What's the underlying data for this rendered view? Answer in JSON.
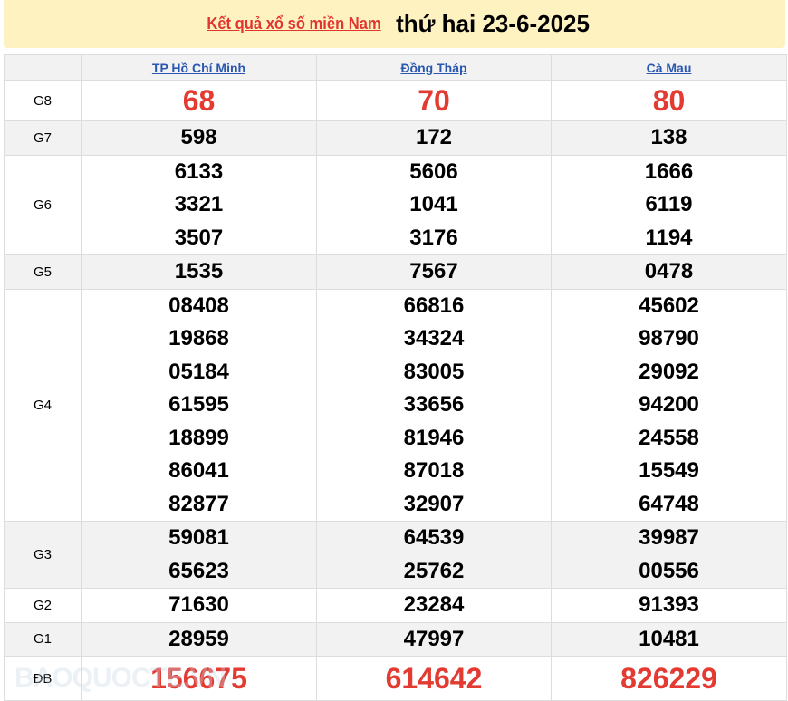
{
  "header": {
    "link": "Kết quả xổ số miền Nam",
    "date": "thứ hai 23-6-2025"
  },
  "columns": [
    "TP Hồ Chí Minh",
    "Đồng Tháp",
    "Cà Mau"
  ],
  "rows": [
    {
      "label": "G8",
      "values": [
        [
          "68"
        ],
        [
          "70"
        ],
        [
          "80"
        ]
      ]
    },
    {
      "label": "G7",
      "values": [
        [
          "598"
        ],
        [
          "172"
        ],
        [
          "138"
        ]
      ]
    },
    {
      "label": "G6",
      "values": [
        [
          "6133",
          "3321",
          "3507"
        ],
        [
          "5606",
          "1041",
          "3176"
        ],
        [
          "1666",
          "6119",
          "1194"
        ]
      ]
    },
    {
      "label": "G5",
      "values": [
        [
          "1535"
        ],
        [
          "7567"
        ],
        [
          "0478"
        ]
      ]
    },
    {
      "label": "G4",
      "values": [
        [
          "08408",
          "19868",
          "05184",
          "61595",
          "18899",
          "86041",
          "82877"
        ],
        [
          "66816",
          "34324",
          "83005",
          "33656",
          "81946",
          "87018",
          "32907"
        ],
        [
          "45602",
          "98790",
          "29092",
          "94200",
          "24558",
          "15549",
          "64748"
        ]
      ]
    },
    {
      "label": "G3",
      "values": [
        [
          "59081",
          "65623"
        ],
        [
          "64539",
          "25762"
        ],
        [
          "39987",
          "00556"
        ]
      ]
    },
    {
      "label": "G2",
      "values": [
        [
          "71630"
        ],
        [
          "23284"
        ],
        [
          "91393"
        ]
      ]
    },
    {
      "label": "G1",
      "values": [
        [
          "28959"
        ],
        [
          "47997"
        ],
        [
          "10481"
        ]
      ]
    },
    {
      "label": "ĐB",
      "values": [
        [
          "156675"
        ],
        [
          "614642"
        ],
        [
          "826229"
        ]
      ]
    }
  ],
  "watermark": "BAOQUOCTE.VN",
  "colors": {
    "accent": "#e33a32",
    "link": "#2a58b0",
    "banner": "#fdf2c0"
  }
}
